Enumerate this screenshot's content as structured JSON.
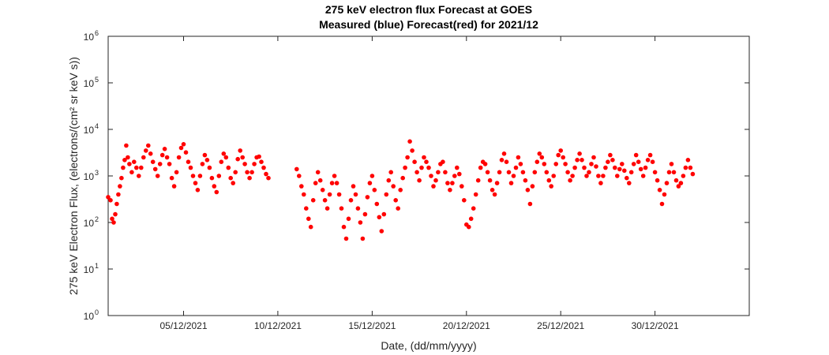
{
  "chart_data": {
    "type": "scatter",
    "title": "275 keV electron flux Forecast at GOES",
    "subtitle": "Measured (blue) Forecast(red) for 2021/12",
    "xlabel": "Date, (dd/mm/yyyy)",
    "ylabel": "275 keV Electron Flux, (electrons/(cm² sr keV s))",
    "y_scale": "log",
    "ylim": [
      1,
      1000000
    ],
    "xlim": [
      "2021-12-01",
      "2022-01-04"
    ],
    "grid": false,
    "x_ticks": [
      {
        "date": "2021-12-05",
        "label": "05/12/2021"
      },
      {
        "date": "2021-12-10",
        "label": "10/12/2021"
      },
      {
        "date": "2021-12-15",
        "label": "15/12/2021"
      },
      {
        "date": "2021-12-20",
        "label": "20/12/2021"
      },
      {
        "date": "2021-12-25",
        "label": "25/12/2021"
      },
      {
        "date": "2021-12-30",
        "label": "30/12/2021"
      }
    ],
    "y_ticks": [
      {
        "value": 1,
        "base": "10",
        "exp": "0"
      },
      {
        "value": 10,
        "base": "10",
        "exp": "1"
      },
      {
        "value": 100,
        "base": "10",
        "exp": "2"
      },
      {
        "value": 1000,
        "base": "10",
        "exp": "3"
      },
      {
        "value": 10000,
        "base": "10",
        "exp": "4"
      },
      {
        "value": 100000,
        "base": "10",
        "exp": "5"
      },
      {
        "value": 1000000,
        "base": "10",
        "exp": "6"
      }
    ],
    "series": [
      {
        "color": "#ff0000",
        "points": [
          [
            "2021-12-01T00:00",
            350
          ],
          [
            "2021-12-01T03:00",
            300
          ],
          [
            "2021-12-01T05:00",
            120
          ],
          [
            "2021-12-01T07:00",
            100
          ],
          [
            "2021-12-01T09:00",
            150
          ],
          [
            "2021-12-01T11:00",
            250
          ],
          [
            "2021-12-01T13:00",
            400
          ],
          [
            "2021-12-01T15:00",
            600
          ],
          [
            "2021-12-01T17:00",
            900
          ],
          [
            "2021-12-01T19:00",
            1500
          ],
          [
            "2021-12-01T21:00",
            2200
          ],
          [
            "2021-12-01T23:00",
            4500
          ],
          [
            "2021-12-02T01:00",
            2500
          ],
          [
            "2021-12-02T03:00",
            1800
          ],
          [
            "2021-12-02T06:00",
            1200
          ],
          [
            "2021-12-02T09:00",
            2000
          ],
          [
            "2021-12-02T12:00",
            1500
          ],
          [
            "2021-12-02T15:00",
            1000
          ],
          [
            "2021-12-02T18:00",
            1500
          ],
          [
            "2021-12-02T21:00",
            2500
          ],
          [
            "2021-12-03T00:00",
            3500
          ],
          [
            "2021-12-03T03:00",
            4500
          ],
          [
            "2021-12-03T06:00",
            3000
          ],
          [
            "2021-12-03T09:00",
            2000
          ],
          [
            "2021-12-03T12:00",
            1400
          ],
          [
            "2021-12-03T15:00",
            1000
          ],
          [
            "2021-12-03T18:00",
            1800
          ],
          [
            "2021-12-03T21:00",
            2800
          ],
          [
            "2021-12-04T00:00",
            3800
          ],
          [
            "2021-12-04T03:00",
            2500
          ],
          [
            "2021-12-04T06:00",
            1800
          ],
          [
            "2021-12-04T09:00",
            900
          ],
          [
            "2021-12-04T12:00",
            600
          ],
          [
            "2021-12-04T15:00",
            1200
          ],
          [
            "2021-12-04T18:00",
            2500
          ],
          [
            "2021-12-04T21:00",
            4000
          ],
          [
            "2021-12-05T00:00",
            4800
          ],
          [
            "2021-12-05T03:00",
            3200
          ],
          [
            "2021-12-05T06:00",
            2000
          ],
          [
            "2021-12-05T09:00",
            1500
          ],
          [
            "2021-12-05T12:00",
            1000
          ],
          [
            "2021-12-05T15:00",
            700
          ],
          [
            "2021-12-05T18:00",
            500
          ],
          [
            "2021-12-05T21:00",
            1000
          ],
          [
            "2021-12-06T00:00",
            1800
          ],
          [
            "2021-12-06T03:00",
            2800
          ],
          [
            "2021-12-06T06:00",
            2200
          ],
          [
            "2021-12-06T09:00",
            1500
          ],
          [
            "2021-12-06T12:00",
            900
          ],
          [
            "2021-12-06T15:00",
            600
          ],
          [
            "2021-12-06T18:00",
            450
          ],
          [
            "2021-12-06T21:00",
            1000
          ],
          [
            "2021-12-07T00:00",
            2000
          ],
          [
            "2021-12-07T03:00",
            3000
          ],
          [
            "2021-12-07T06:00",
            2500
          ],
          [
            "2021-12-07T09:00",
            1500
          ],
          [
            "2021-12-07T12:00",
            900
          ],
          [
            "2021-12-07T15:00",
            700
          ],
          [
            "2021-12-07T18:00",
            1200
          ],
          [
            "2021-12-07T21:00",
            2300
          ],
          [
            "2021-12-08T00:00",
            3500
          ],
          [
            "2021-12-08T03:00",
            2500
          ],
          [
            "2021-12-08T06:00",
            1800
          ],
          [
            "2021-12-08T09:00",
            1200
          ],
          [
            "2021-12-08T12:00",
            900
          ],
          [
            "2021-12-08T15:00",
            1200
          ],
          [
            "2021-12-08T18:00",
            1800
          ],
          [
            "2021-12-08T21:00",
            2500
          ],
          [
            "2021-12-09T00:00",
            2600
          ],
          [
            "2021-12-09T03:00",
            2000
          ],
          [
            "2021-12-09T06:00",
            1500
          ],
          [
            "2021-12-09T09:00",
            1100
          ],
          [
            "2021-12-09T12:00",
            900
          ],
          [
            "2021-12-11T00:00",
            1400
          ],
          [
            "2021-12-11T03:00",
            1000
          ],
          [
            "2021-12-11T06:00",
            600
          ],
          [
            "2021-12-11T09:00",
            400
          ],
          [
            "2021-12-11T12:00",
            200
          ],
          [
            "2021-12-11T15:00",
            120
          ],
          [
            "2021-12-11T18:00",
            80
          ],
          [
            "2021-12-11T21:00",
            300
          ],
          [
            "2021-12-12T00:00",
            700
          ],
          [
            "2021-12-12T03:00",
            1200
          ],
          [
            "2021-12-12T06:00",
            800
          ],
          [
            "2021-12-12T09:00",
            500
          ],
          [
            "2021-12-12T12:00",
            300
          ],
          [
            "2021-12-12T15:00",
            200
          ],
          [
            "2021-12-12T18:00",
            400
          ],
          [
            "2021-12-12T21:00",
            700
          ],
          [
            "2021-12-13T00:00",
            1000
          ],
          [
            "2021-12-13T03:00",
            700
          ],
          [
            "2021-12-13T06:00",
            400
          ],
          [
            "2021-12-13T09:00",
            200
          ],
          [
            "2021-12-13T12:00",
            80
          ],
          [
            "2021-12-13T15:00",
            45
          ],
          [
            "2021-12-13T18:00",
            120
          ],
          [
            "2021-12-13T21:00",
            300
          ],
          [
            "2021-12-14T00:00",
            600
          ],
          [
            "2021-12-14T03:00",
            400
          ],
          [
            "2021-12-14T06:00",
            200
          ],
          [
            "2021-12-14T09:00",
            100
          ],
          [
            "2021-12-14T12:00",
            45
          ],
          [
            "2021-12-14T15:00",
            150
          ],
          [
            "2021-12-14T18:00",
            350
          ],
          [
            "2021-12-14T21:00",
            700
          ],
          [
            "2021-12-15T00:00",
            1000
          ],
          [
            "2021-12-15T03:00",
            500
          ],
          [
            "2021-12-15T06:00",
            250
          ],
          [
            "2021-12-15T09:00",
            130
          ],
          [
            "2021-12-15T12:00",
            65
          ],
          [
            "2021-12-15T15:00",
            150
          ],
          [
            "2021-12-15T18:00",
            400
          ],
          [
            "2021-12-15T21:00",
            800
          ],
          [
            "2021-12-16T00:00",
            1200
          ],
          [
            "2021-12-16T03:00",
            600
          ],
          [
            "2021-12-16T06:00",
            300
          ],
          [
            "2021-12-16T09:00",
            200
          ],
          [
            "2021-12-16T12:00",
            500
          ],
          [
            "2021-12-16T15:00",
            900
          ],
          [
            "2021-12-16T18:00",
            1500
          ],
          [
            "2021-12-16T21:00",
            2500
          ],
          [
            "2021-12-17T00:00",
            5500
          ],
          [
            "2021-12-17T03:00",
            3500
          ],
          [
            "2021-12-17T06:00",
            2000
          ],
          [
            "2021-12-17T09:00",
            1200
          ],
          [
            "2021-12-17T12:00",
            800
          ],
          [
            "2021-12-17T15:00",
            1500
          ],
          [
            "2021-12-17T18:00",
            2500
          ],
          [
            "2021-12-17T21:00",
            2000
          ],
          [
            "2021-12-18T00:00",
            1500
          ],
          [
            "2021-12-18T03:00",
            1000
          ],
          [
            "2021-12-18T06:00",
            600
          ],
          [
            "2021-12-18T09:00",
            800
          ],
          [
            "2021-12-18T12:00",
            1200
          ],
          [
            "2021-12-18T15:00",
            1800
          ],
          [
            "2021-12-18T18:00",
            2000
          ],
          [
            "2021-12-18T21:00",
            1200
          ],
          [
            "2021-12-19T00:00",
            700
          ],
          [
            "2021-12-19T03:00",
            500
          ],
          [
            "2021-12-19T06:00",
            700
          ],
          [
            "2021-12-19T09:00",
            1000
          ],
          [
            "2021-12-19T12:00",
            1500
          ],
          [
            "2021-12-19T15:00",
            1100
          ],
          [
            "2021-12-19T18:00",
            600
          ],
          [
            "2021-12-19T21:00",
            300
          ],
          [
            "2021-12-20T00:00",
            90
          ],
          [
            "2021-12-20T03:00",
            80
          ],
          [
            "2021-12-20T06:00",
            120
          ],
          [
            "2021-12-20T09:00",
            200
          ],
          [
            "2021-12-20T12:00",
            400
          ],
          [
            "2021-12-20T15:00",
            800
          ],
          [
            "2021-12-20T18:00",
            1500
          ],
          [
            "2021-12-20T21:00",
            2000
          ],
          [
            "2021-12-21T00:00",
            1800
          ],
          [
            "2021-12-21T03:00",
            1200
          ],
          [
            "2021-12-21T06:00",
            800
          ],
          [
            "2021-12-21T09:00",
            500
          ],
          [
            "2021-12-21T12:00",
            400
          ],
          [
            "2021-12-21T15:00",
            700
          ],
          [
            "2021-12-21T18:00",
            1200
          ],
          [
            "2021-12-21T21:00",
            2200
          ],
          [
            "2021-12-22T00:00",
            3000
          ],
          [
            "2021-12-22T03:00",
            2000
          ],
          [
            "2021-12-22T06:00",
            1200
          ],
          [
            "2021-12-22T09:00",
            700
          ],
          [
            "2021-12-22T12:00",
            1000
          ],
          [
            "2021-12-22T15:00",
            1500
          ],
          [
            "2021-12-22T18:00",
            2500
          ],
          [
            "2021-12-22T21:00",
            1800
          ],
          [
            "2021-12-23T00:00",
            1200
          ],
          [
            "2021-12-23T03:00",
            800
          ],
          [
            "2021-12-23T06:00",
            500
          ],
          [
            "2021-12-23T09:00",
            250
          ],
          [
            "2021-12-23T12:00",
            600
          ],
          [
            "2021-12-23T15:00",
            1200
          ],
          [
            "2021-12-23T18:00",
            2000
          ],
          [
            "2021-12-23T21:00",
            3000
          ],
          [
            "2021-12-24T00:00",
            2500
          ],
          [
            "2021-12-24T03:00",
            1800
          ],
          [
            "2021-12-24T06:00",
            1200
          ],
          [
            "2021-12-24T09:00",
            800
          ],
          [
            "2021-12-24T12:00",
            600
          ],
          [
            "2021-12-24T15:00",
            1000
          ],
          [
            "2021-12-24T18:00",
            1800
          ],
          [
            "2021-12-24T21:00",
            2800
          ],
          [
            "2021-12-25T00:00",
            3500
          ],
          [
            "2021-12-25T03:00",
            2500
          ],
          [
            "2021-12-25T06:00",
            1800
          ],
          [
            "2021-12-25T09:00",
            1200
          ],
          [
            "2021-12-25T12:00",
            800
          ],
          [
            "2021-12-25T15:00",
            1000
          ],
          [
            "2021-12-25T18:00",
            1500
          ],
          [
            "2021-12-25T21:00",
            2200
          ],
          [
            "2021-12-26T00:00",
            3000
          ],
          [
            "2021-12-26T03:00",
            2200
          ],
          [
            "2021-12-26T06:00",
            1500
          ],
          [
            "2021-12-26T09:00",
            1000
          ],
          [
            "2021-12-26T12:00",
            1200
          ],
          [
            "2021-12-26T15:00",
            1800
          ],
          [
            "2021-12-26T18:00",
            2500
          ],
          [
            "2021-12-26T21:00",
            1600
          ],
          [
            "2021-12-27T00:00",
            1000
          ],
          [
            "2021-12-27T03:00",
            700
          ],
          [
            "2021-12-27T06:00",
            1000
          ],
          [
            "2021-12-27T09:00",
            1500
          ],
          [
            "2021-12-27T12:00",
            2000
          ],
          [
            "2021-12-27T15:00",
            2800
          ],
          [
            "2021-12-27T18:00",
            2200
          ],
          [
            "2021-12-27T21:00",
            1500
          ],
          [
            "2021-12-28T00:00",
            1000
          ],
          [
            "2021-12-28T03:00",
            1400
          ],
          [
            "2021-12-28T06:00",
            1800
          ],
          [
            "2021-12-28T09:00",
            1300
          ],
          [
            "2021-12-28T12:00",
            900
          ],
          [
            "2021-12-28T15:00",
            700
          ],
          [
            "2021-12-28T18:00",
            1200
          ],
          [
            "2021-12-28T21:00",
            1800
          ],
          [
            "2021-12-29T00:00",
            2800
          ],
          [
            "2021-12-29T03:00",
            2000
          ],
          [
            "2021-12-29T06:00",
            1400
          ],
          [
            "2021-12-29T09:00",
            1000
          ],
          [
            "2021-12-29T12:00",
            1500
          ],
          [
            "2021-12-29T15:00",
            2200
          ],
          [
            "2021-12-29T18:00",
            2800
          ],
          [
            "2021-12-29T21:00",
            2000
          ],
          [
            "2021-12-30T00:00",
            1200
          ],
          [
            "2021-12-30T03:00",
            800
          ],
          [
            "2021-12-30T06:00",
            500
          ],
          [
            "2021-12-30T09:00",
            250
          ],
          [
            "2021-12-30T12:00",
            400
          ],
          [
            "2021-12-30T15:00",
            700
          ],
          [
            "2021-12-30T18:00",
            1200
          ],
          [
            "2021-12-30T21:00",
            1800
          ],
          [
            "2021-12-31T00:00",
            1200
          ],
          [
            "2021-12-31T03:00",
            800
          ],
          [
            "2021-12-31T06:00",
            600
          ],
          [
            "2021-12-31T09:00",
            700
          ],
          [
            "2021-12-31T12:00",
            1000
          ],
          [
            "2021-12-31T15:00",
            1500
          ],
          [
            "2021-12-31T18:00",
            2200
          ],
          [
            "2021-12-31T21:00",
            1500
          ],
          [
            "2022-01-01T00:00",
            1100
          ]
        ]
      }
    ]
  }
}
